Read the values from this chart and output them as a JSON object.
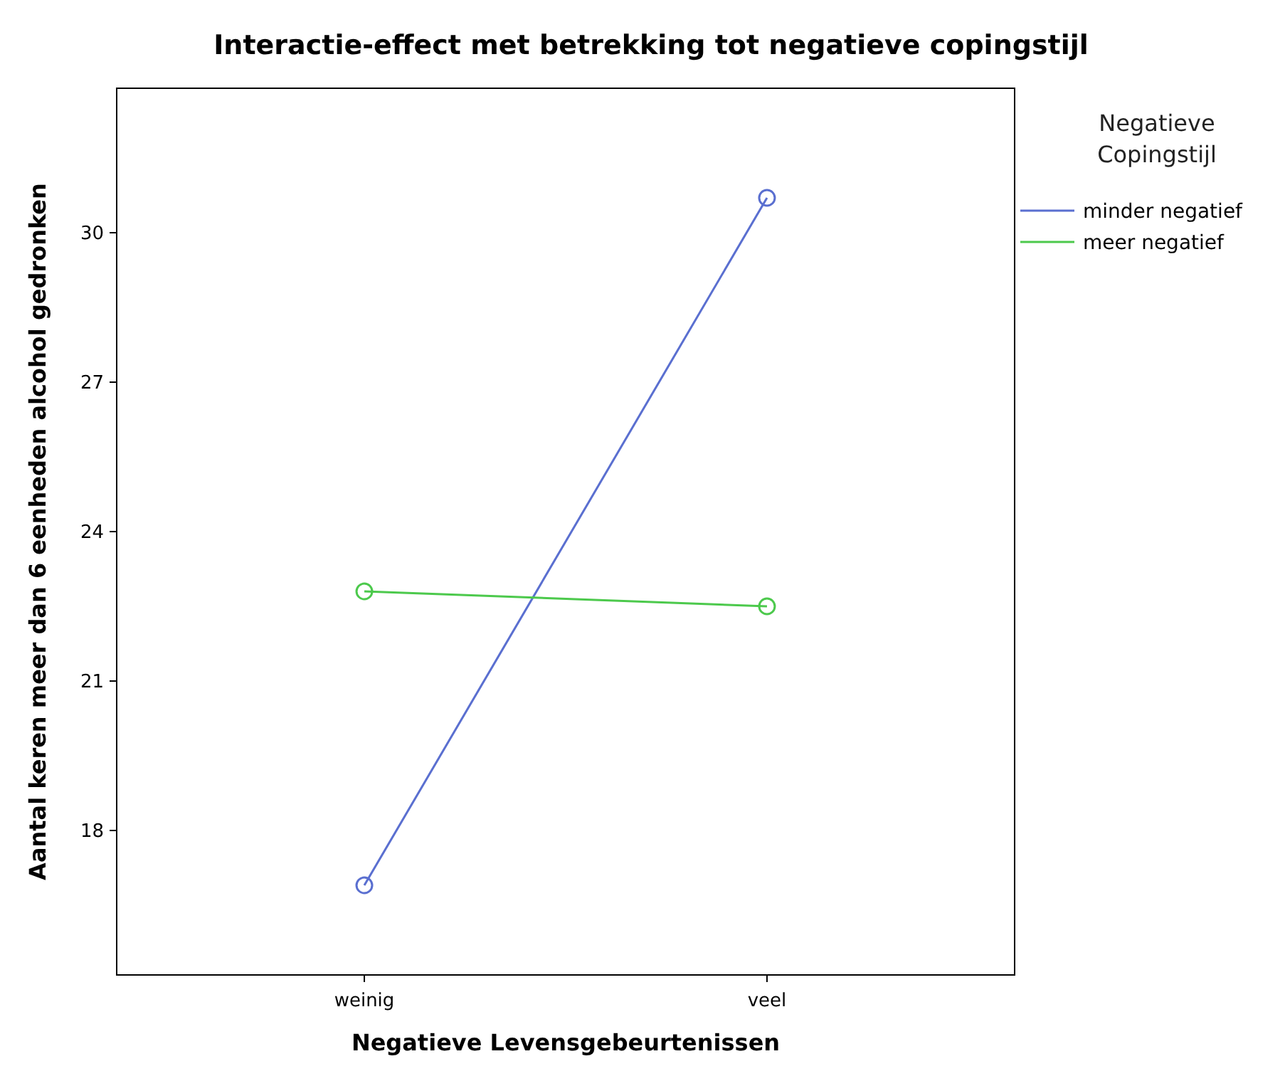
{
  "chart_data": {
    "type": "line",
    "title": "Interactie-effect met betrekking tot negatieve copingstijl",
    "xlabel": "Negatieve Levensgebeurtenissen",
    "ylabel": "Aantal keren meer dan 6 eenheden alcohol gedronken",
    "legend_title": "Negatieve Copingstijl",
    "categories": [
      "weinig",
      "veel"
    ],
    "series": [
      {
        "name": "minder negatief",
        "color": "#5a6fd0",
        "values": [
          16.9,
          30.7
        ]
      },
      {
        "name": "meer negatief",
        "color": "#4cc94c",
        "values": [
          22.8,
          22.5
        ]
      }
    ],
    "ylim": [
      15.1,
      32.9
    ],
    "yticks": [
      18,
      21,
      24,
      27,
      30
    ],
    "grid": false,
    "legend": "right",
    "marker": "circle",
    "line_style": "solid"
  }
}
